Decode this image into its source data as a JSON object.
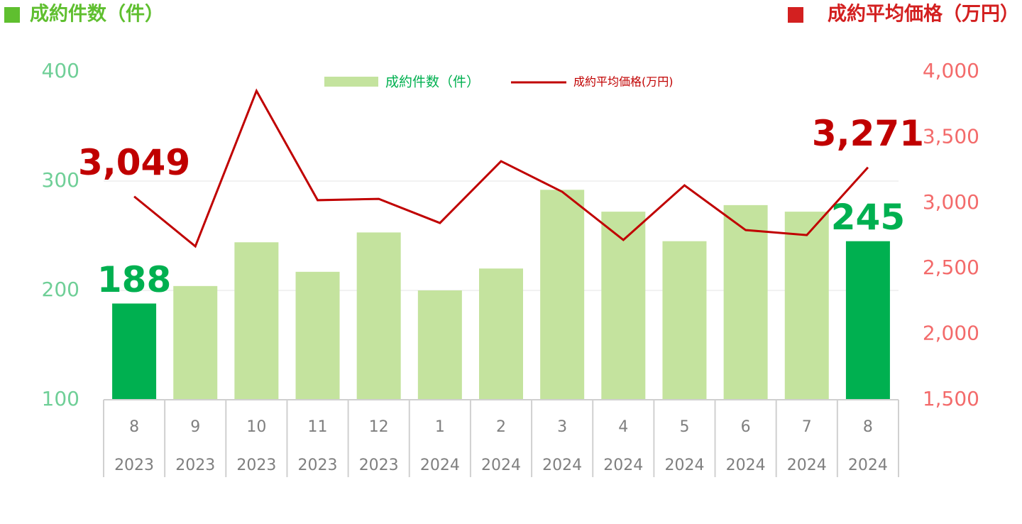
{
  "chart_data": {
    "type": "bar_line",
    "left_header": "成約件数（件）",
    "right_header": "成約平均価格（万円）",
    "categories": [
      "8",
      "9",
      "10",
      "11",
      "12",
      "1",
      "2",
      "3",
      "4",
      "5",
      "6",
      "7",
      "8"
    ],
    "years": [
      "2023",
      "2023",
      "2023",
      "2023",
      "2023",
      "2024",
      "2024",
      "2024",
      "2024",
      "2024",
      "2024",
      "2024",
      "2024"
    ],
    "series": [
      {
        "name": "成約件数（件）",
        "type": "bar",
        "color": "#c4e39e",
        "bar_colors": [
          "#00b050",
          "#c4e39e",
          "#c4e39e",
          "#c4e39e",
          "#c4e39e",
          "#c4e39e",
          "#c4e39e",
          "#c4e39e",
          "#c4e39e",
          "#c4e39e",
          "#c4e39e",
          "#c4e39e",
          "#00b050"
        ],
        "label_color": "#00b050",
        "values": [
          188,
          204,
          244,
          217,
          253,
          200,
          220,
          292,
          272,
          245,
          278,
          272,
          245
        ],
        "labeled": [
          true,
          false,
          false,
          false,
          false,
          false,
          false,
          false,
          false,
          false,
          false,
          false,
          true
        ]
      },
      {
        "name": "成約平均価格(万円)",
        "type": "line",
        "axis": "y2",
        "color": "#c00000",
        "values": [
          3049,
          2669,
          3854,
          3021,
          3031,
          2847,
          3318,
          3085,
          2718,
          3134,
          2793,
          2755,
          3271
        ],
        "value_labels": [
          "3,049",
          null,
          null,
          null,
          null,
          null,
          null,
          null,
          null,
          null,
          null,
          null,
          "3,271"
        ]
      }
    ],
    "ylim": [
      100,
      400
    ],
    "yticks": [
      100,
      200,
      300,
      400
    ],
    "y2lim": [
      1500,
      4000
    ],
    "y2ticks": [
      {
        "value": 1500,
        "label": "1,500"
      },
      {
        "value": 2000,
        "label": "2,000"
      },
      {
        "value": 2500,
        "label": "2,500"
      },
      {
        "value": 3000,
        "label": "3,000"
      },
      {
        "value": 3500,
        "label": "3,500"
      },
      {
        "value": 4000,
        "label": "4,000"
      }
    ],
    "grid": true
  }
}
